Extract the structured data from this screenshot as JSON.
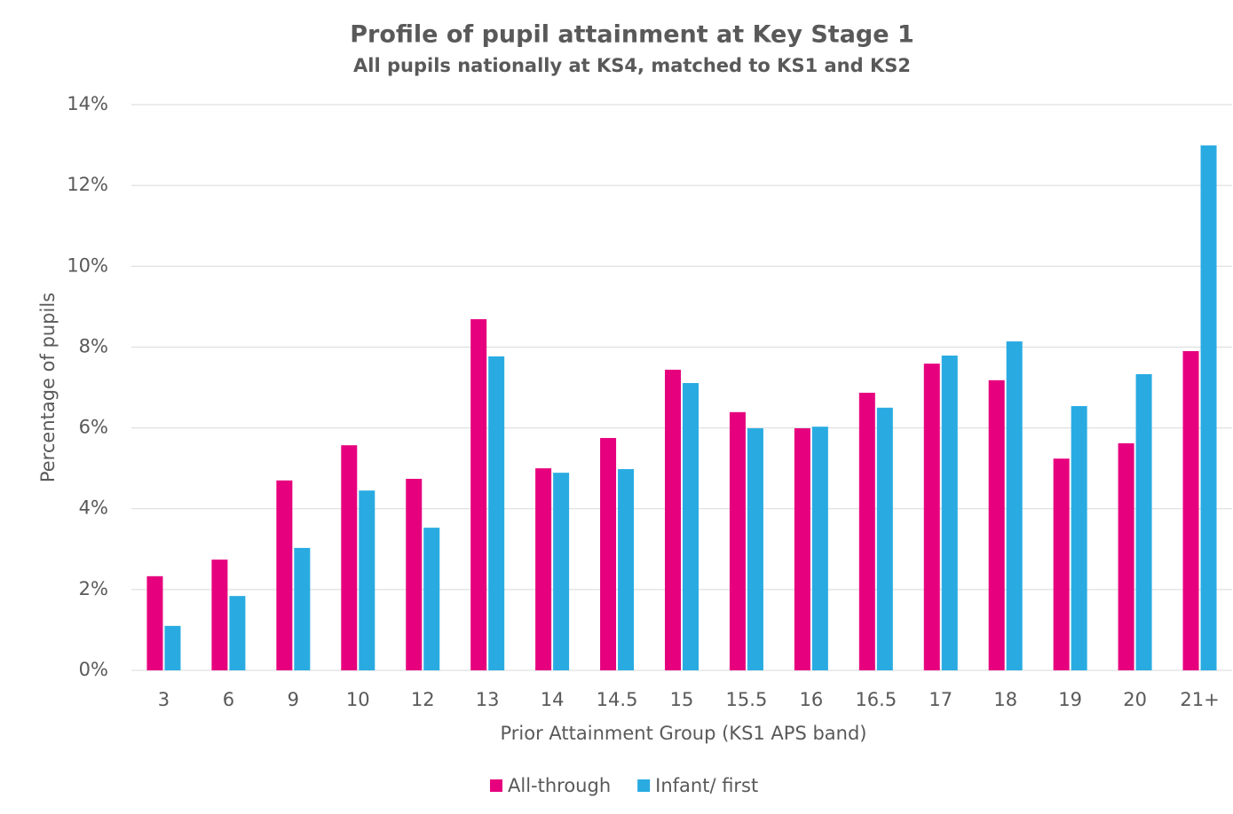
{
  "chart_data": {
    "type": "bar",
    "title": "Profile of pupil attainment at Key Stage 1",
    "subtitle": "All pupils nationally at KS4, matched to KS1 and KS2",
    "x_label": "Prior Attainment Group (KS1 APS band)",
    "y_label": "Percentage of pupils",
    "categories": [
      "3",
      "6",
      "9",
      "10",
      "12",
      "13",
      "14",
      "14.5",
      "15",
      "15.5",
      "16",
      "16.5",
      "17",
      "18",
      "19",
      "20",
      "21+"
    ],
    "series": [
      {
        "name": "All-through",
        "color": "#e6007e",
        "values": [
          2.33,
          2.74,
          4.7,
          5.57,
          4.74,
          8.69,
          5.0,
          5.75,
          7.44,
          6.39,
          5.99,
          6.87,
          7.59,
          7.18,
          5.24,
          5.62,
          7.9
        ]
      },
      {
        "name": "Infant/ first",
        "color": "#29abe2",
        "values": [
          1.1,
          1.84,
          3.03,
          4.45,
          3.53,
          7.77,
          4.89,
          4.98,
          7.11,
          5.99,
          6.03,
          6.5,
          7.79,
          8.14,
          6.54,
          7.33,
          12.99
        ]
      }
    ],
    "ylim": [
      0,
      14
    ],
    "yticks": [
      {
        "value": 0,
        "label": "0%"
      },
      {
        "value": 2,
        "label": "2%"
      },
      {
        "value": 4,
        "label": "4%"
      },
      {
        "value": 6,
        "label": "6%"
      },
      {
        "value": 8,
        "label": "8%"
      },
      {
        "value": 10,
        "label": "10%"
      },
      {
        "value": 12,
        "label": "12%"
      },
      {
        "value": 14,
        "label": "14%"
      }
    ],
    "grid": true,
    "legend": "bottom"
  }
}
